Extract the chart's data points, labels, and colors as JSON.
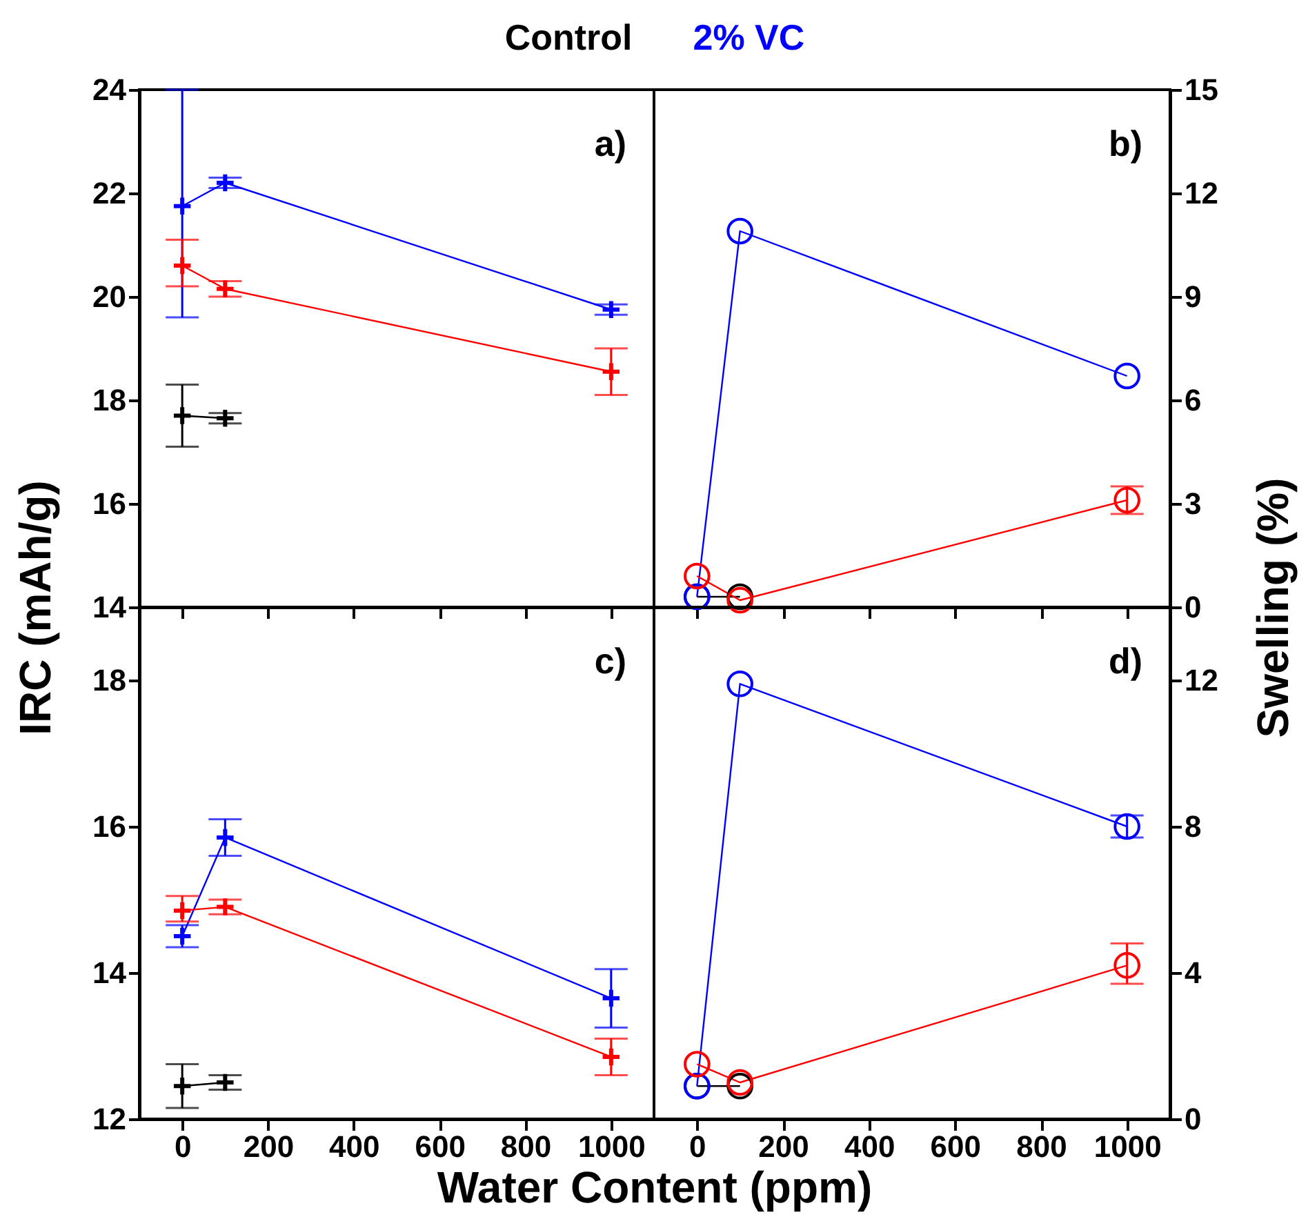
{
  "chart_data": [
    {
      "type": "line",
      "x": [
        0,
        100,
        1000
      ],
      "xlim": [
        -100,
        1100
      ],
      "xticks": [
        0,
        200,
        400,
        600,
        800,
        1000
      ],
      "ylim": [
        14,
        24
      ],
      "yticks": [
        14,
        16,
        18,
        20,
        22,
        24
      ],
      "ylabel": "IRC (mAh/g)",
      "tick_labels": "y",
      "marker": "cross",
      "annotations": [
        "a)"
      ],
      "series": [
        {
          "name": "Control",
          "color": "#000000",
          "values": [
            17.7,
            17.65,
            null
          ],
          "errors": [
            [
              17.1,
              18.3
            ],
            0.1,
            null
          ]
        },
        {
          "name": "2% VC",
          "color": "#0000ff",
          "values": [
            21.75,
            22.2,
            19.75
          ],
          "errors": [
            [
              19.6,
              24
            ],
            0.1,
            0.1
          ]
        },
        {
          "color": "#ff0000",
          "values": [
            20.6,
            20.15,
            18.55
          ],
          "errors": [
            [
              20.2,
              21.1
            ],
            0.15,
            [
              18.1,
              19.0
            ]
          ]
        }
      ]
    },
    {
      "type": "line",
      "x": [
        0,
        100,
        1000
      ],
      "xlim": [
        -100,
        1100
      ],
      "xticks": [
        0,
        200,
        400,
        600,
        800,
        1000
      ],
      "y2lim": [
        0,
        15
      ],
      "y2ticks": [
        0,
        3,
        6,
        9,
        12,
        15
      ],
      "y2label": "Swelling (%)",
      "tick_labels": "y",
      "marker": "circle",
      "annotations": [
        "b)"
      ],
      "series": [
        {
          "color": "#000000",
          "values": [
            0.3,
            0.3,
            null
          ],
          "axis": "y2"
        },
        {
          "color": "#0000ff",
          "values": [
            0.3,
            10.9,
            6.7
          ],
          "axis": "y2"
        },
        {
          "color": "#ff0000",
          "values": [
            0.9,
            0.2,
            3.1
          ],
          "errors": [
            null,
            null,
            0.4
          ],
          "axis": "y2"
        }
      ]
    },
    {
      "type": "line",
      "x": [
        0,
        100,
        1000
      ],
      "xlim": [
        -100,
        1100
      ],
      "xticks": [
        0,
        200,
        400,
        600,
        800,
        1000
      ],
      "ylim": [
        12,
        19
      ],
      "yticks": [
        12,
        14,
        16,
        18
      ],
      "xlabel": "Water Content (ppm)",
      "marker": "cross",
      "annotations": [
        "c)"
      ],
      "series": [
        {
          "color": "#000000",
          "values": [
            12.45,
            12.5,
            null
          ],
          "errors": [
            [
              12.15,
              12.75
            ],
            0.1,
            null
          ]
        },
        {
          "color": "#0000ff",
          "values": [
            14.5,
            15.85,
            13.65
          ],
          "errors": [
            [
              14.35,
              14.65
            ],
            [
              15.6,
              16.1
            ],
            [
              13.25,
              14.05
            ]
          ]
        },
        {
          "color": "#ff0000",
          "values": [
            14.85,
            14.9,
            12.85
          ],
          "errors": [
            [
              14.7,
              15.05
            ],
            0.1,
            [
              12.6,
              13.1
            ]
          ]
        }
      ]
    },
    {
      "type": "line",
      "x": [
        0,
        100,
        1000
      ],
      "xlim": [
        -100,
        1100
      ],
      "xticks": [
        0,
        200,
        400,
        600,
        800,
        1000
      ],
      "y2lim": [
        0,
        14
      ],
      "y2ticks": [
        0,
        4,
        8,
        12
      ],
      "marker": "circle",
      "annotations": [
        "d)"
      ],
      "series": [
        {
          "color": "#000000",
          "values": [
            0.9,
            0.9,
            null
          ],
          "axis": "y2"
        },
        {
          "color": "#0000ff",
          "values": [
            0.9,
            11.9,
            8.0
          ],
          "errors": [
            null,
            null,
            0.3
          ],
          "axis": "y2"
        },
        {
          "color": "#ff0000",
          "values": [
            1.5,
            1.0,
            4.2
          ],
          "errors": [
            null,
            null,
            [
              3.7,
              4.8
            ]
          ],
          "axis": "y2"
        }
      ]
    }
  ]
}
